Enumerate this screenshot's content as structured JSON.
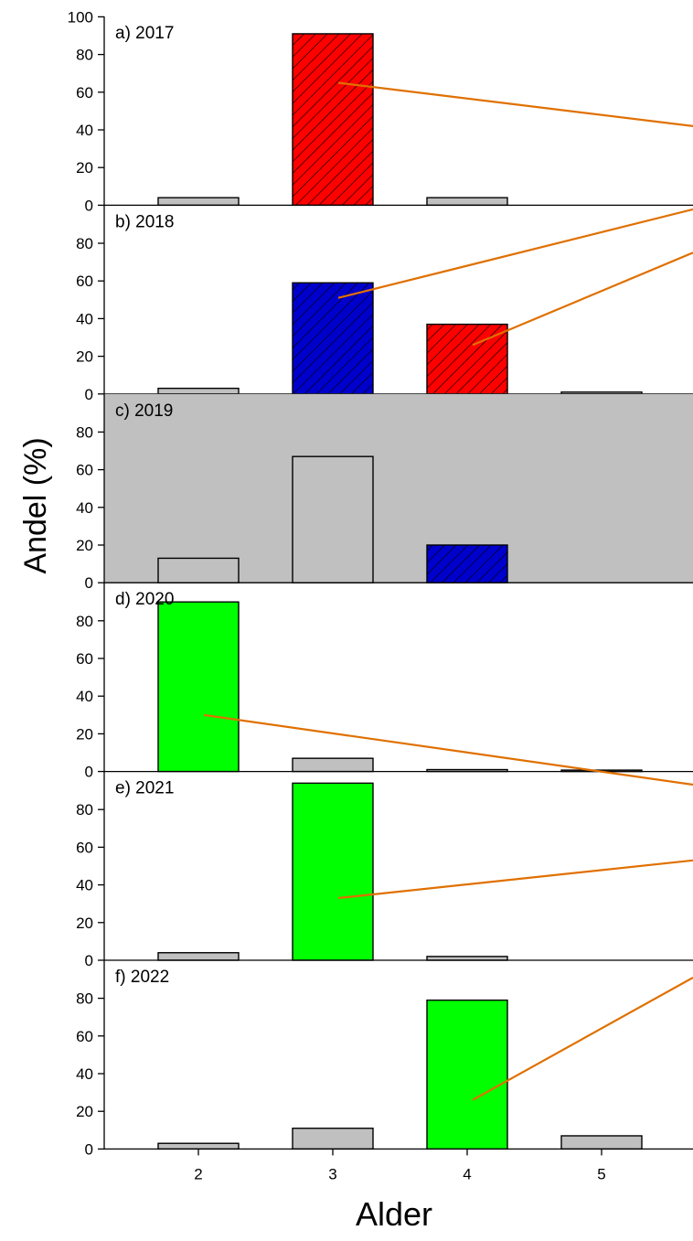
{
  "chart_data": {
    "type": "bar",
    "xlabel": "Alder",
    "ylabel": "Andel (%)",
    "ylim": [
      0,
      100
    ],
    "x_ticks": [
      "2",
      "3",
      "4",
      "5"
    ],
    "y_ticks": [
      "0",
      "20",
      "40",
      "60",
      "80",
      "100"
    ],
    "colors": {
      "gray": "#c0c0c0",
      "red": "#ff0000",
      "blue": "#0000cc",
      "green": "#00ff00",
      "white": "#ffffff",
      "line": "#e07000",
      "panel_bg_gray": "#c0c0c0"
    },
    "panels": [
      {
        "label": "a) 2017",
        "background": "white",
        "bars": [
          {
            "age": 2,
            "value": 4,
            "fill": "gray",
            "hatch": false
          },
          {
            "age": 3,
            "value": 91,
            "fill": "red",
            "hatch": true
          },
          {
            "age": 4,
            "value": 4,
            "fill": "gray",
            "hatch": false
          }
        ]
      },
      {
        "label": "b) 2018",
        "background": "white",
        "bars": [
          {
            "age": 2,
            "value": 3,
            "fill": "gray",
            "hatch": false
          },
          {
            "age": 3,
            "value": 59,
            "fill": "blue",
            "hatch": true
          },
          {
            "age": 4,
            "value": 37,
            "fill": "red",
            "hatch": true
          },
          {
            "age": 5,
            "value": 1,
            "fill": "gray",
            "hatch": false
          }
        ]
      },
      {
        "label": "c) 2019",
        "background": "gray",
        "bars": [
          {
            "age": 2,
            "value": 13,
            "fill": "gray",
            "hatch": false
          },
          {
            "age": 3,
            "value": 67,
            "fill": "gray",
            "hatch": false
          },
          {
            "age": 4,
            "value": 20,
            "fill": "blue",
            "hatch": true
          }
        ]
      },
      {
        "label": "d) 2020",
        "background": "white",
        "bars": [
          {
            "age": 2,
            "value": 90,
            "fill": "green",
            "hatch": false
          },
          {
            "age": 3,
            "value": 7,
            "fill": "gray",
            "hatch": false
          },
          {
            "age": 4,
            "value": 1,
            "fill": "gray",
            "hatch": false
          },
          {
            "age": 5,
            "value": 0.5,
            "fill": "gray",
            "hatch": false
          }
        ]
      },
      {
        "label": "e) 2021",
        "background": "white",
        "bars": [
          {
            "age": 2,
            "value": 4,
            "fill": "gray",
            "hatch": false
          },
          {
            "age": 3,
            "value": 94,
            "fill": "green",
            "hatch": false
          },
          {
            "age": 4,
            "value": 2,
            "fill": "gray",
            "hatch": false
          }
        ]
      },
      {
        "label": "f) 2022",
        "background": "white",
        "bars": [
          {
            "age": 2,
            "value": 3,
            "fill": "gray",
            "hatch": false
          },
          {
            "age": 3,
            "value": 11,
            "fill": "gray",
            "hatch": false
          },
          {
            "age": 4,
            "value": 79,
            "fill": "green",
            "hatch": false
          },
          {
            "age": 5,
            "value": 7,
            "fill": "gray",
            "hatch": false
          }
        ]
      }
    ],
    "connector_lines": [
      {
        "panel": 0,
        "from": {
          "age": 3,
          "value": 65
        },
        "to_offpanel_value": 42
      },
      {
        "panel": 1,
        "from": {
          "age": 3,
          "value": 51
        },
        "to_offpanel_value": 98
      },
      {
        "panel": 1,
        "from": {
          "age": 4,
          "value": 26
        },
        "to_offpanel_value": 75
      },
      {
        "panel": 3,
        "from": {
          "age": 2,
          "value": 30
        },
        "to_offpanel_value": -7
      },
      {
        "panel": 4,
        "from": {
          "age": 3,
          "value": 33
        },
        "to_offpanel_value": 53
      },
      {
        "panel": 5,
        "from": {
          "age": 4,
          "value": 26
        },
        "to_offpanel_value": 91
      }
    ]
  }
}
